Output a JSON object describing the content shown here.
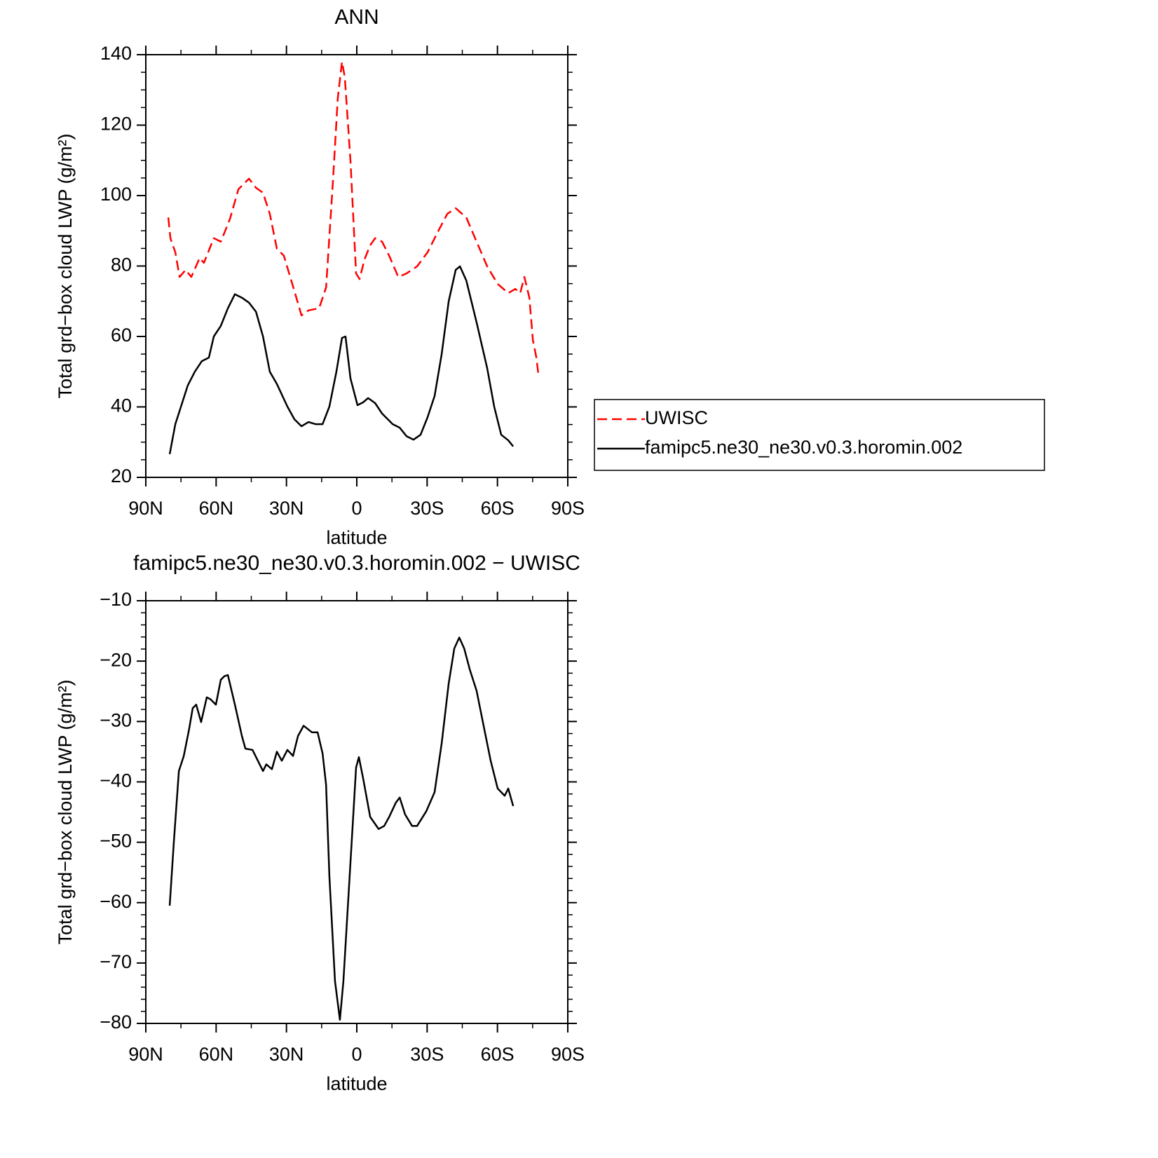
{
  "chart_data": [
    {
      "type": "line",
      "title": "ANN",
      "xlabel": "latitude",
      "ylabel": "Total grd−box cloud LWP (g/m²)",
      "xlim": [
        90,
        -90
      ],
      "xticks": [
        {
          "value": 90,
          "label": "90N"
        },
        {
          "value": 60,
          "label": "60N"
        },
        {
          "value": 30,
          "label": "30N"
        },
        0,
        {
          "value": -30,
          "label": "30S"
        },
        {
          "value": -60,
          "label": "60S"
        },
        {
          "value": -90,
          "label": "90S"
        }
      ],
      "ylim": [
        20,
        140
      ],
      "yticks": [
        20,
        40,
        60,
        80,
        100,
        120,
        140
      ],
      "yminor_divisions": 4,
      "xminor_divisions": 2,
      "legend": "right",
      "series": [
        {
          "name": "UWISC",
          "color": "#ff0000",
          "linestyle": "dashed",
          "x": [
            80.4,
            79.5,
            77.4,
            75.6,
            73,
            70.6,
            67,
            65.2,
            61,
            58,
            54.1,
            50.5,
            46,
            43,
            40,
            37.1,
            34.1,
            31.1,
            26.6,
            23.6,
            20.6,
            16.1,
            13.1,
            10.2,
            8.1,
            6.3,
            5.1,
            2.7,
            0.3,
            -1.2,
            -3.3,
            -5.7,
            -7.8,
            -10.8,
            -13.8,
            -17.7,
            -21.2,
            -25.7,
            -30.2,
            -34.7,
            -38.6,
            -42.2,
            -46.7,
            -51.1,
            -55.6,
            -60.1,
            -64.6,
            -67.6,
            -69.7,
            -71.5,
            -73.6,
            -75.1,
            -76.6,
            -77.5
          ],
          "values": [
            93.8,
            87.9,
            83.9,
            76.9,
            78.9,
            76.9,
            82.3,
            80.9,
            87.9,
            86.9,
            93.4,
            101.8,
            104.8,
            102.2,
            100.8,
            94.8,
            84.9,
            82.9,
            72.9,
            66,
            67.4,
            68,
            73.9,
            103.8,
            127.7,
            138,
            133.6,
            109.8,
            77.9,
            76.3,
            81.9,
            85.9,
            87.9,
            86.9,
            82.9,
            76.9,
            77.9,
            79.9,
            83.9,
            89.9,
            94.8,
            96.4,
            93.8,
            86.9,
            79.9,
            74.9,
            72.3,
            73.5,
            72.3,
            76.9,
            71,
            59,
            54,
            49
          ]
        },
        {
          "name": "famipc5.ne30_ne30.v0.3.horomin.002",
          "color": "#000000",
          "linestyle": "solid",
          "x": [
            79.8,
            77.4,
            75,
            72.1,
            69.1,
            66.1,
            63.1,
            61,
            58,
            55,
            52,
            49,
            46,
            43,
            40,
            37.1,
            34.1,
            29.6,
            26.6,
            23.6,
            20.6,
            17.6,
            14.6,
            11.7,
            8.7,
            6.3,
            4.8,
            2.7,
            -0.3,
            -2.7,
            -4.8,
            -7.8,
            -10.8,
            -15.3,
            -18.3,
            -21.2,
            -24.2,
            -27.2,
            -30.2,
            -33.2,
            -36.2,
            -39.2,
            -42.2,
            -44,
            -46.7,
            -51.1,
            -55.6,
            -58.6,
            -61.6,
            -64.6,
            -66.7
          ],
          "values": [
            26.6,
            35.1,
            40.1,
            46.1,
            50,
            53,
            54,
            60,
            63,
            68,
            72,
            71,
            69.6,
            67,
            60,
            50,
            46.5,
            40.1,
            36.5,
            34.5,
            35.7,
            35.1,
            35.1,
            40.1,
            50,
            59.6,
            60,
            48.1,
            40.5,
            41.3,
            42.5,
            41.1,
            38.1,
            35.1,
            34.1,
            31.7,
            30.7,
            32.1,
            37.1,
            43.1,
            55,
            70,
            78.9,
            79.9,
            75.9,
            64,
            51,
            40.1,
            32.1,
            30.5,
            28.8
          ]
        }
      ]
    },
    {
      "type": "line",
      "title": "famipc5.ne30_ne30.v0.3.horomin.002 − UWISC",
      "xlabel": "latitude",
      "ylabel": "Total grd−box cloud LWP (g/m²)",
      "xlim": [
        90,
        -90
      ],
      "xticks": [
        {
          "value": 90,
          "label": "90N"
        },
        {
          "value": 60,
          "label": "60N"
        },
        {
          "value": 30,
          "label": "30N"
        },
        0,
        {
          "value": -30,
          "label": "30S"
        },
        {
          "value": -60,
          "label": "60S"
        },
        {
          "value": -90,
          "label": "90S"
        }
      ],
      "ylim": [
        -80,
        -10
      ],
      "yticks": [
        {
          "value": -80,
          "label": "−80"
        },
        {
          "value": -70,
          "label": "−70"
        },
        {
          "value": -60,
          "label": "−60"
        },
        {
          "value": -50,
          "label": "−50"
        },
        {
          "value": -40,
          "label": "−40"
        },
        {
          "value": -30,
          "label": "−30"
        },
        {
          "value": -20,
          "label": "−20"
        },
        {
          "value": -10,
          "label": "−10"
        }
      ],
      "yminor_divisions": 5,
      "xminor_divisions": 2,
      "series": [
        {
          "color": "#000000",
          "linestyle": "solid",
          "x": [
            79.8,
            78,
            75.9,
            73.8,
            71.5,
            70,
            68.5,
            66.4,
            64,
            62.5,
            60.1,
            58,
            56.5,
            55,
            52,
            49,
            47.5,
            44.5,
            42.2,
            40,
            38.6,
            36.2,
            34.1,
            32,
            29.6,
            27.2,
            25.1,
            22.7,
            19.1,
            16.7,
            14.6,
            13.1,
            11.7,
            9.3,
            7.2,
            5.7,
            2.7,
            0.3,
            -0.9,
            -2.7,
            -5.7,
            -9.3,
            -11.7,
            -13.8,
            -16.7,
            -18.3,
            -20.6,
            -23.6,
            -25.7,
            -29.6,
            -33.2,
            -36.2,
            -39.2,
            -41.6,
            -43.7,
            -45.8,
            -48.2,
            -51.1,
            -54.1,
            -57.1,
            -60.1,
            -63.1,
            -64.6,
            -66.7
          ],
          "values": [
            -60.5,
            -49.8,
            -38.2,
            -35.7,
            -31.2,
            -27.8,
            -27.2,
            -30.1,
            -26,
            -26.3,
            -27.2,
            -23.1,
            -22.5,
            -22.3,
            -27.2,
            -32.4,
            -34.5,
            -34.7,
            -36.5,
            -38.2,
            -37.1,
            -37.9,
            -35,
            -36.5,
            -34.7,
            -35.7,
            -32.4,
            -30.7,
            -31.8,
            -31.8,
            -35.3,
            -40.5,
            -55.6,
            -73,
            -79.4,
            -73,
            -53.3,
            -37.6,
            -35.9,
            -39.4,
            -45.8,
            -47.8,
            -47.3,
            -45.8,
            -43.4,
            -42.6,
            -45.4,
            -47.3,
            -47.3,
            -44.9,
            -41.7,
            -33.6,
            -23.7,
            -17.9,
            -16.1,
            -17.9,
            -21.4,
            -24.9,
            -30.7,
            -36.5,
            -41.1,
            -42.3,
            -41.1,
            -44
          ]
        }
      ]
    }
  ]
}
